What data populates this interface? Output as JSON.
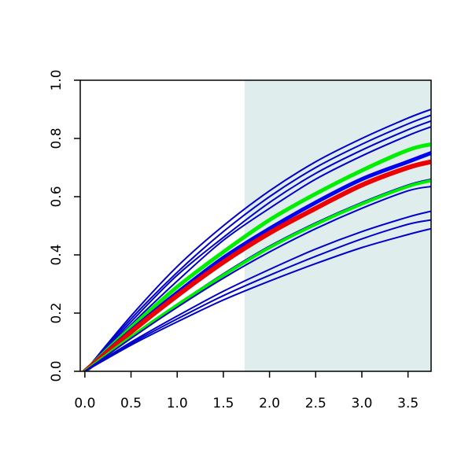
{
  "chart_data": {
    "type": "line",
    "title": "",
    "xlabel": "",
    "ylabel": "",
    "xlim": [
      -0.05,
      3.75
    ],
    "ylim": [
      0.0,
      1.0
    ],
    "x_ticks": [
      0.0,
      0.5,
      1.0,
      1.5,
      2.0,
      2.5,
      3.0,
      3.5
    ],
    "x_tick_labels": [
      "0.0",
      "0.5",
      "1.0",
      "1.5",
      "2.0",
      "2.5",
      "3.0",
      "3.5"
    ],
    "y_ticks": [
      0.0,
      0.2,
      0.4,
      0.6,
      0.8,
      1.0
    ],
    "y_tick_labels": [
      "0.0",
      "0.2",
      "0.4",
      "0.6",
      "0.8",
      "1.0"
    ],
    "grid": false,
    "shaded_region": {
      "x_from": 1.73,
      "x_to": 3.75,
      "color": "#e0eded"
    },
    "x": [
      0.0,
      0.5,
      1.0,
      1.5,
      2.0,
      2.5,
      3.0,
      3.5,
      3.75
    ],
    "series": [
      {
        "color": "#0000cc",
        "width": 2,
        "values": [
          0.0,
          0.19,
          0.36,
          0.5,
          0.62,
          0.72,
          0.8,
          0.87,
          0.9
        ]
      },
      {
        "color": "#0000cc",
        "width": 2,
        "values": [
          0.0,
          0.18,
          0.34,
          0.48,
          0.6,
          0.7,
          0.78,
          0.85,
          0.88
        ]
      },
      {
        "color": "#0000cc",
        "width": 2,
        "values": [
          0.0,
          0.17,
          0.33,
          0.46,
          0.58,
          0.68,
          0.76,
          0.83,
          0.86
        ]
      },
      {
        "color": "#0000cc",
        "width": 2,
        "values": [
          0.0,
          0.16,
          0.31,
          0.45,
          0.56,
          0.66,
          0.74,
          0.81,
          0.84
        ]
      },
      {
        "color": "#00ee00",
        "width": 5,
        "values": [
          0.0,
          0.15,
          0.29,
          0.41,
          0.52,
          0.61,
          0.69,
          0.76,
          0.78
        ]
      },
      {
        "color": "#0000ee",
        "width": 5,
        "values": [
          0.0,
          0.14,
          0.27,
          0.39,
          0.49,
          0.58,
          0.66,
          0.72,
          0.75
        ]
      },
      {
        "color": "#ee0000",
        "width": 6,
        "values": [
          0.0,
          0.135,
          0.26,
          0.375,
          0.475,
          0.56,
          0.64,
          0.7,
          0.72
        ]
      },
      {
        "color": "#0000cc",
        "width": 2,
        "values": [
          0.0,
          0.12,
          0.23,
          0.335,
          0.43,
          0.51,
          0.58,
          0.64,
          0.66
        ]
      },
      {
        "color": "#00ee00",
        "width": 4,
        "values": [
          0.0,
          0.118,
          0.228,
          0.33,
          0.425,
          0.505,
          0.575,
          0.635,
          0.655
        ]
      },
      {
        "color": "#0000cc",
        "width": 2,
        "values": [
          0.0,
          0.113,
          0.22,
          0.32,
          0.41,
          0.49,
          0.56,
          0.62,
          0.635
        ]
      },
      {
        "color": "#0000cc",
        "width": 2,
        "values": [
          0.0,
          0.1,
          0.19,
          0.275,
          0.35,
          0.42,
          0.48,
          0.53,
          0.55
        ]
      },
      {
        "color": "#0000cc",
        "width": 2,
        "values": [
          0.0,
          0.095,
          0.18,
          0.26,
          0.33,
          0.395,
          0.455,
          0.505,
          0.52
        ]
      },
      {
        "color": "#0000cc",
        "width": 2,
        "values": [
          0.0,
          0.09,
          0.17,
          0.245,
          0.31,
          0.37,
          0.425,
          0.47,
          0.49
        ]
      }
    ]
  }
}
